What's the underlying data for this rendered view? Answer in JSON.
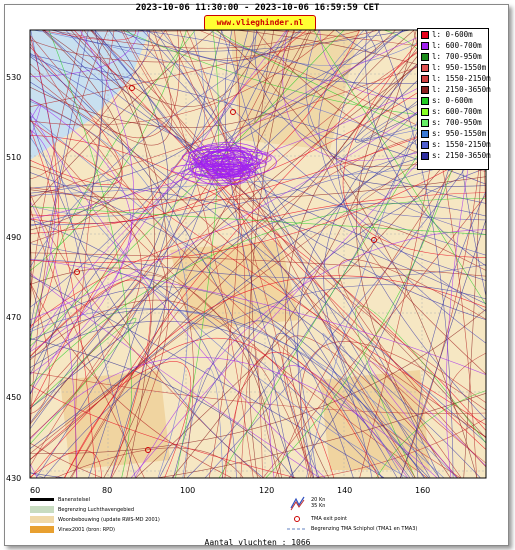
{
  "header": {
    "time_range": "2023-10-06 11:30:00 - 2023-10-06 16:59:59 CET",
    "site_label": "www.vlieghinder.nl"
  },
  "axes": {
    "y_ticks": [
      "530",
      "510",
      "490",
      "470",
      "450",
      "430"
    ],
    "x_ticks": [
      "60",
      "80",
      "100",
      "120",
      "140",
      "160"
    ]
  },
  "legend": {
    "items": [
      {
        "label": "l: 0-600m",
        "color": "#e8001a"
      },
      {
        "label": "l: 600-700m",
        "color": "#a020f0"
      },
      {
        "label": "l: 700-950m",
        "color": "#1a8a1a"
      },
      {
        "label": "l: 950-1550m",
        "color": "#e05050"
      },
      {
        "label": "l: 1550-2150m",
        "color": "#d04040"
      },
      {
        "label": "l: 2150-3650m",
        "color": "#8b2020"
      },
      {
        "label": "s: 0-600m",
        "color": "#22cc22"
      },
      {
        "label": "s: 600-700m",
        "color": "#88ff22"
      },
      {
        "label": "s: 700-950m",
        "color": "#66ee66"
      },
      {
        "label": "s: 950-1550m",
        "color": "#3a7ad6"
      },
      {
        "label": "s: 1550-2150m",
        "color": "#5060d0"
      },
      {
        "label": "s: 2150-3650m",
        "color": "#3030a0"
      }
    ]
  },
  "map_legend": {
    "runway": "Banenstelsel",
    "airport_area": "Begrenzing Luchthavengebied",
    "housing": "Woonbebouwing (update RWS-MD 2001)",
    "vinex": "Vinex2001 (bron: RPD)",
    "wind_20": "20 Kn",
    "wind_35": "35 Kn",
    "tma_exit": "TMA exit point",
    "tma_border": "Begrenzing TMA Schiphol  (TMA1 en TMA3)"
  },
  "footer": {
    "flights_count": "Aantal vluchten : 1066"
  },
  "colors": {
    "land": "#f6e7c3",
    "water": "#c8e0f0",
    "grid": "#b0b0b0",
    "arrival": "#b22222",
    "departure": "#3a3aa8"
  }
}
